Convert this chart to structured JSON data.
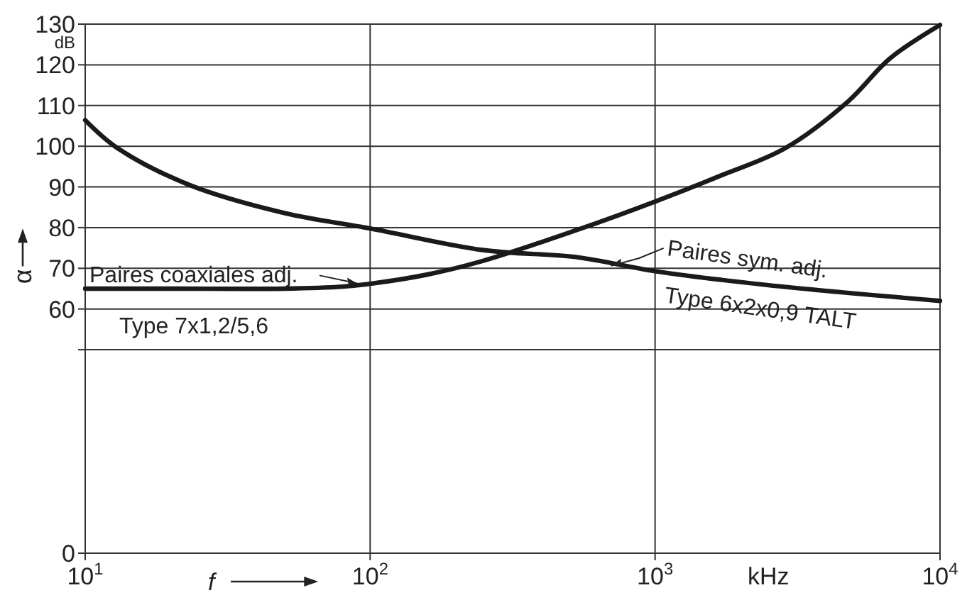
{
  "chart_data": {
    "type": "line",
    "ylabel": "α",
    "xlabel": "f",
    "log": "x",
    "grid": true,
    "marker": "none",
    "line_style": "solid",
    "xlim": [
      10,
      10000
    ],
    "xticks": [
      {
        "value": 10,
        "label": "10$^{1}$"
      },
      {
        "value": 100,
        "label": "10$^{2}$"
      },
      {
        "value": 1000,
        "label": "10$^{3}$"
      },
      {
        "value": 10000,
        "label": "10$^{4}$"
      }
    ],
    "ylim": [
      0,
      130
    ],
    "yticks": [
      0,
      {
        "value": 50,
        "label": null
      },
      60,
      70,
      80,
      90,
      100,
      110,
      120,
      130
    ],
    "series": [
      {
        "name": "Paires coaxiales adj.",
        "color": "#1a1a1a",
        "x": [
          10,
          20,
          50,
          80,
          100,
          157,
          248,
          536,
          1000,
          1690,
          2860,
          4740,
          6680,
          10000
        ],
        "values": [
          65,
          65,
          65,
          65.5,
          66.2,
          68.4,
          71.8,
          79.5,
          86.4,
          92.7,
          99.5,
          110.9,
          121.6,
          129.8
        ]
      },
      {
        "name": "Paires sym. adj.",
        "color": "#1a1a1a",
        "x": [
          10,
          13,
          23.2,
          50,
          100,
          248,
          536,
          1000,
          2470,
          10000
        ],
        "values": [
          106.4,
          99.5,
          90.5,
          83.6,
          79.8,
          74.5,
          72.7,
          69.3,
          65.9,
          62.0
        ]
      }
    ],
    "annotations": [
      "dB",
      "kHz",
      "Type 7x1,2/5,6",
      "Type 6x2x0,9 TALT"
    ]
  }
}
